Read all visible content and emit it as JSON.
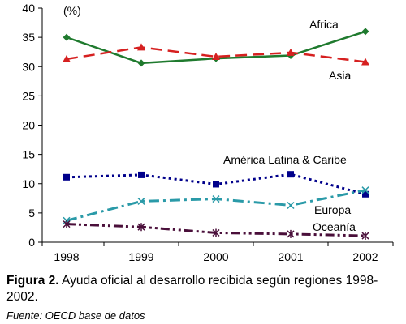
{
  "chart_data": {
    "type": "line",
    "unit_label": "(%)",
    "x": [
      "1998",
      "1999",
      "2000",
      "2001",
      "2002"
    ],
    "ylim": [
      0,
      40
    ],
    "yticks": [
      0,
      5,
      10,
      15,
      20,
      25,
      30,
      35,
      40
    ],
    "grid": false,
    "legend": "inline labels",
    "series": [
      {
        "name": "Africa",
        "values": [
          35.0,
          30.6,
          31.4,
          31.9,
          36.0
        ],
        "color": "#1f7a2e",
        "marker": "diamond",
        "dash": "solid"
      },
      {
        "name": "Asia",
        "values": [
          31.3,
          33.3,
          31.7,
          32.4,
          30.8
        ],
        "color": "#d62020",
        "marker": "triangle",
        "dash": "long-dash"
      },
      {
        "name": "América Latina & Caribe",
        "values": [
          11.1,
          11.5,
          9.9,
          11.6,
          8.2
        ],
        "color": "#00008b",
        "marker": "square",
        "dash": "dotted"
      },
      {
        "name": "Europa",
        "values": [
          3.7,
          7.0,
          7.4,
          6.3,
          8.9
        ],
        "color": "#2a9aa8",
        "marker": "x",
        "dash": "dash-dot"
      },
      {
        "name": "Oceanía",
        "values": [
          3.1,
          2.6,
          1.6,
          1.4,
          1.1
        ],
        "color": "#4a0f3a",
        "marker": "star",
        "dash": "dash-dot-dot"
      }
    ]
  },
  "caption": {
    "label": "Figura 2.",
    "text": " Ayuda oficial al desarrollo recibida según regiones 1998-2002."
  },
  "source": "Fuente: OECD base de datos"
}
